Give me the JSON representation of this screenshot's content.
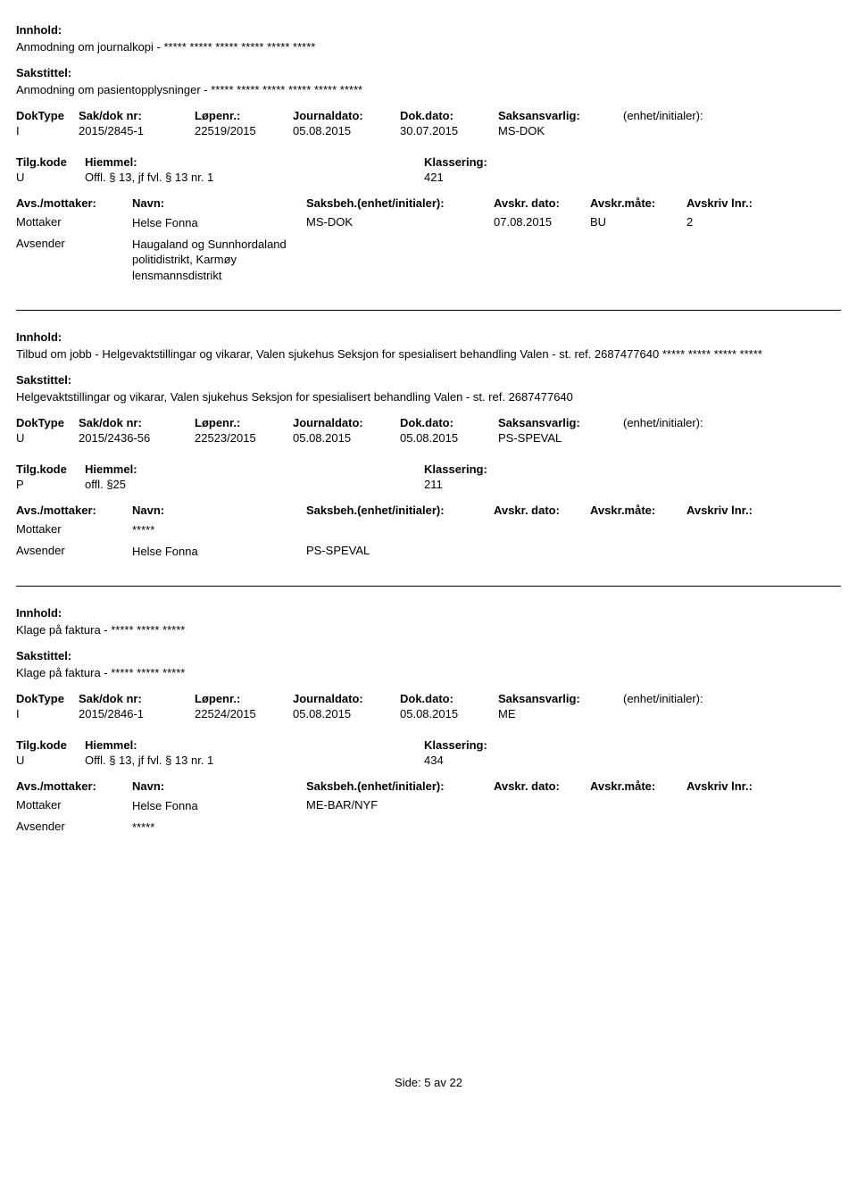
{
  "labels": {
    "innhold": "Innhold:",
    "sakstittel": "Sakstittel:",
    "doktype": "DokType",
    "saknr": "Sak/dok nr:",
    "lopenr": "Løpenr.:",
    "journaldato": "Journaldato:",
    "dokdato": "Dok.dato:",
    "saksansvarlig": "Saksansvarlig:",
    "enhet": "(enhet/initialer):",
    "tilgkode": "Tilg.kode",
    "hjemmel": "Hiemmel:",
    "klassering": "Klassering:",
    "avsmottaker": "Avs./mottaker:",
    "navn": "Navn:",
    "saksbeh": "Saksbeh.(enhet/initialer):",
    "avskrdato": "Avskr. dato:",
    "avskrmate": "Avskr.måte:",
    "avskrlnr": "Avskriv lnr.:"
  },
  "records": [
    {
      "innhold": "Anmodning om journalkopi -  ***** ***** ***** ***** ***** *****",
      "sakstittel": "Anmodning om pasientopplysninger - ***** ***** ***** ***** ***** *****",
      "doktype": "I",
      "saknr": "2015/2845-1",
      "lopenr": "22519/2015",
      "journaldato": "05.08.2015",
      "dokdato": "30.07.2015",
      "saksansvarlig": "MS-DOK",
      "tilgkode": "U",
      "hjemmel": "Offl. § 13, jf fvl. § 13 nr. 1",
      "klassering": "421",
      "parties": [
        {
          "role": "Mottaker",
          "navn": "Helse Fonna",
          "saksbeh": "MS-DOK",
          "avskrdato": "07.08.2015",
          "avskrmate": "BU",
          "avskrlnr": "2"
        },
        {
          "role": "Avsender",
          "navn": "Haugaland og Sunnhordaland politidistrikt, Karmøy lensmannsdistrikt",
          "saksbeh": "",
          "avskrdato": "",
          "avskrmate": "",
          "avskrlnr": ""
        }
      ]
    },
    {
      "innhold": "Tilbud om jobb - Helgevaktstillingar og vikarar, Valen sjukehus Seksjon for spesialisert behandling Valen - st. ref. 2687477640 ***** ***** ***** *****",
      "sakstittel": "Helgevaktstillingar og vikarar, Valen sjukehus Seksjon for spesialisert behandling Valen - st. ref. 2687477640",
      "doktype": "U",
      "saknr": "2015/2436-56",
      "lopenr": "22523/2015",
      "journaldato": "05.08.2015",
      "dokdato": "05.08.2015",
      "saksansvarlig": "PS-SPEVAL",
      "tilgkode": "P",
      "hjemmel": "offl. §25",
      "klassering": "211",
      "parties": [
        {
          "role": "Mottaker",
          "navn": "*****",
          "saksbeh": "",
          "avskrdato": "",
          "avskrmate": "",
          "avskrlnr": ""
        },
        {
          "role": "Avsender",
          "navn": "Helse Fonna",
          "saksbeh": "PS-SPEVAL",
          "avskrdato": "",
          "avskrmate": "",
          "avskrlnr": ""
        }
      ]
    },
    {
      "innhold": "Klage på faktura - ***** ***** *****",
      "sakstittel": "Klage på faktura - ***** ***** *****",
      "doktype": "I",
      "saknr": "2015/2846-1",
      "lopenr": "22524/2015",
      "journaldato": "05.08.2015",
      "dokdato": "05.08.2015",
      "saksansvarlig": "ME",
      "tilgkode": "U",
      "hjemmel": "Offl. § 13, jf fvl. § 13 nr. 1",
      "klassering": "434",
      "parties": [
        {
          "role": "Mottaker",
          "navn": "Helse Fonna",
          "saksbeh": "ME-BAR/NYF",
          "avskrdato": "",
          "avskrmate": "",
          "avskrlnr": ""
        },
        {
          "role": "Avsender",
          "navn": "*****",
          "saksbeh": "",
          "avskrdato": "",
          "avskrmate": "",
          "avskrlnr": ""
        }
      ]
    }
  ],
  "footer": "Side:  5 av  22"
}
